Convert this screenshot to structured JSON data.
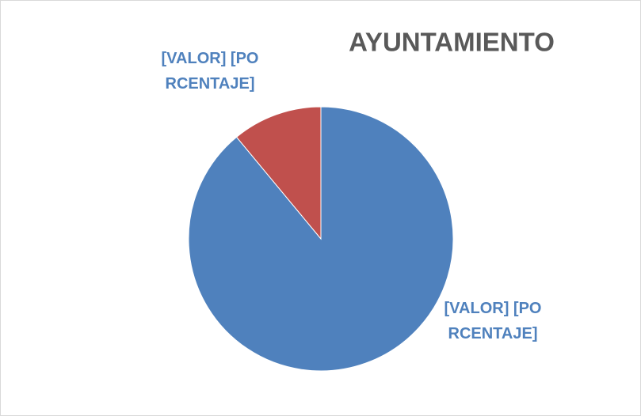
{
  "chart_data": {
    "type": "pie",
    "title": "AYUNTAMIENTO",
    "values": [
      89,
      11
    ],
    "value_labels": [
      "[VALOR] [PORCENTAJE]",
      "[VALOR] [PORCENTAJE]"
    ],
    "colors": [
      "#4f81bd",
      "#c0504d"
    ]
  }
}
